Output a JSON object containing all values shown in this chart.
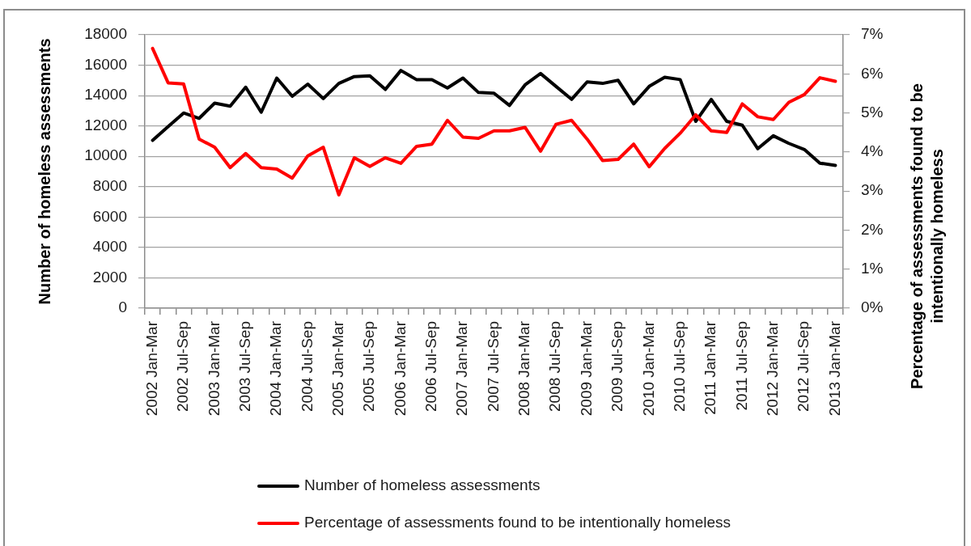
{
  "chart_data": {
    "type": "line",
    "ylabel": "Number of homeless assessments",
    "y2label": "Percentage of assessments found to be intentionally homeless",
    "categories": [
      "2002 Jan-Mar",
      null,
      "2002 Jul-Sep",
      null,
      "2003 Jan-Mar",
      null,
      "2003 Jul-Sep",
      null,
      "2004 Jan-Mar",
      null,
      "2004 Jul-Sep",
      null,
      "2005 Jan-Mar",
      null,
      "2005 Jul-Sep",
      null,
      "2006 Jan-Mar",
      null,
      "2006 Jul-Sep",
      null,
      "2007 Jan-Mar",
      null,
      "2007 Jul-Sep",
      null,
      "2008 Jan-Mar",
      null,
      "2008 Jul-Sep",
      null,
      "2009 Jan-Mar",
      null,
      "2009 Jul-Sep",
      null,
      "2010 Jan-Mar",
      null,
      "2010 Jul-Sep",
      null,
      "2011 Jan-Mar",
      null,
      "2011 Jul-Sep",
      null,
      "2012 Jan-Mar",
      null,
      "2012 Jul-Sep",
      null,
      "2013 Jan-Mar"
    ],
    "series": [
      {
        "name": "Number of homeless assessments",
        "color": "#000000",
        "values": [
          11050,
          11950,
          12850,
          12500,
          13500,
          13300,
          14550,
          12900,
          15150,
          13950,
          14750,
          13800,
          14800,
          15250,
          15300,
          14400,
          15650,
          15050,
          15050,
          14500,
          15150,
          14200,
          14150,
          13350,
          14700,
          15450,
          14600,
          13750,
          14900,
          14800,
          15000,
          13450,
          14600,
          15200,
          15050,
          12300,
          13750,
          12300,
          12050,
          10500,
          11350,
          10850,
          10450,
          9550,
          9400
        ]
      },
      {
        "name": "Percentage of assessments found to be intentionally homeless",
        "color": "#ff0000",
        "axis": "y2",
        "values": [
          6.65,
          5.77,
          5.74,
          4.33,
          4.12,
          3.6,
          3.96,
          3.6,
          3.56,
          3.33,
          3.9,
          4.12,
          2.9,
          3.85,
          3.63,
          3.85,
          3.71,
          4.14,
          4.2,
          4.81,
          4.38,
          4.35,
          4.54,
          4.54,
          4.63,
          4.02,
          4.71,
          4.81,
          4.33,
          3.78,
          3.81,
          4.2,
          3.62,
          4.09,
          4.48,
          4.95,
          4.54,
          4.5,
          5.23,
          4.9,
          4.83,
          5.27,
          5.47,
          5.9,
          5.81
        ]
      }
    ],
    "ylim": [
      0,
      18000
    ],
    "yticks": [
      0,
      2000,
      4000,
      6000,
      8000,
      10000,
      12000,
      14000,
      16000,
      18000
    ],
    "y2lim": [
      0,
      7
    ],
    "y2ticks": [
      {
        "value": 0,
        "label": "0%"
      },
      {
        "value": 1,
        "label": "1%"
      },
      {
        "value": 2,
        "label": "2%"
      },
      {
        "value": 3,
        "label": "3%"
      },
      {
        "value": 4,
        "label": "4%"
      },
      {
        "value": 5,
        "label": "5%"
      },
      {
        "value": 6,
        "label": "6%"
      },
      {
        "value": 7,
        "label": "7%"
      }
    ],
    "grid": "y",
    "legend": "bottom",
    "marker": "none",
    "line_style": "solid"
  }
}
